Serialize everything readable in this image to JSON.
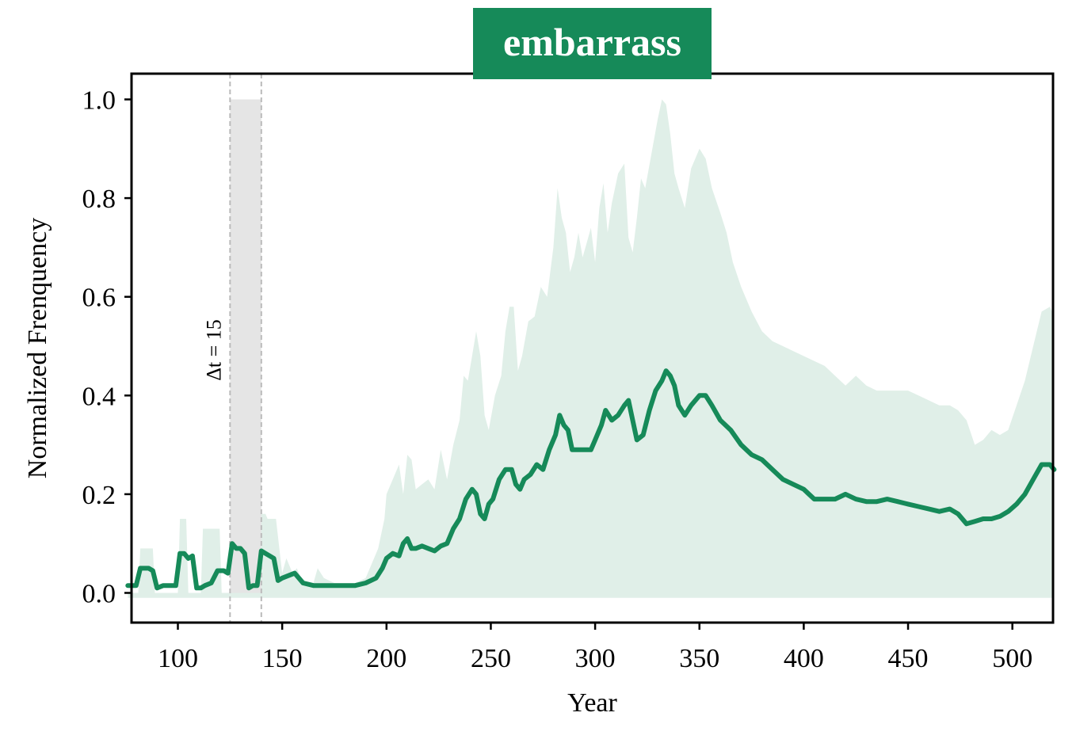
{
  "chart_data": {
    "type": "line",
    "title": "embarrass",
    "xlabel": "Year",
    "ylabel": "Normalized Frenquency",
    "xlim": [
      76,
      520
    ],
    "ylim": [
      -0.06,
      1.04
    ],
    "xticks": [
      100,
      150,
      200,
      250,
      300,
      350,
      400,
      450,
      500
    ],
    "yticks": [
      0.0,
      0.2,
      0.4,
      0.6,
      0.8,
      1.0
    ],
    "ytick_labels": [
      "0.0",
      "0.2",
      "0.4",
      "0.6",
      "0.8",
      "1.0"
    ],
    "grid": false,
    "annotation": {
      "text": "Δt = 15",
      "window_start": 125,
      "window_end": 140,
      "window_top": 1.0
    },
    "colors": {
      "line": "#168a59",
      "band": "#e0efe8",
      "title_bg": "#168a59",
      "window": "#e5e5e5",
      "window_edges": "#bbbbbb"
    },
    "series": [
      {
        "values_note": "mean",
        "x": [
          76,
          80,
          82,
          84,
          86,
          88,
          90,
          93,
          96,
          99,
          101,
          103,
          105,
          107,
          109,
          111,
          113,
          116,
          119,
          122,
          124,
          126,
          128,
          130,
          132,
          134,
          136,
          138,
          140,
          142,
          144,
          146,
          148,
          150,
          153,
          156,
          160,
          165,
          170,
          175,
          180,
          185,
          190,
          195,
          198,
          200,
          203,
          206,
          208,
          210,
          212,
          214,
          217,
          220,
          223,
          226,
          229,
          232,
          235,
          238,
          241,
          243,
          245,
          247,
          249,
          251,
          254,
          257,
          260,
          262,
          264,
          266,
          269,
          272,
          275,
          278,
          281,
          283,
          285,
          287,
          289,
          292,
          295,
          298,
          300,
          303,
          305,
          308,
          311,
          314,
          316,
          318,
          320,
          323,
          326,
          329,
          332,
          334,
          336,
          338,
          340,
          343,
          346,
          350,
          353,
          356,
          360,
          365,
          370,
          375,
          380,
          385,
          390,
          395,
          400,
          405,
          410,
          415,
          420,
          425,
          430,
          435,
          440,
          445,
          450,
          455,
          460,
          465,
          470,
          474,
          478,
          482,
          486,
          490,
          494,
          498,
          502,
          506,
          510,
          514,
          518,
          520
        ],
        "y": [
          0.015,
          0.015,
          0.05,
          0.05,
          0.05,
          0.045,
          0.01,
          0.015,
          0.015,
          0.015,
          0.08,
          0.08,
          0.07,
          0.075,
          0.01,
          0.01,
          0.015,
          0.02,
          0.045,
          0.045,
          0.04,
          0.1,
          0.09,
          0.09,
          0.08,
          0.01,
          0.015,
          0.015,
          0.085,
          0.08,
          0.075,
          0.07,
          0.025,
          0.03,
          0.035,
          0.04,
          0.02,
          0.015,
          0.015,
          0.015,
          0.015,
          0.015,
          0.02,
          0.03,
          0.05,
          0.07,
          0.08,
          0.075,
          0.1,
          0.11,
          0.09,
          0.09,
          0.095,
          0.09,
          0.085,
          0.095,
          0.1,
          0.13,
          0.15,
          0.19,
          0.21,
          0.2,
          0.16,
          0.15,
          0.18,
          0.19,
          0.23,
          0.25,
          0.25,
          0.22,
          0.21,
          0.23,
          0.24,
          0.26,
          0.25,
          0.29,
          0.32,
          0.36,
          0.34,
          0.33,
          0.29,
          0.29,
          0.29,
          0.29,
          0.31,
          0.34,
          0.37,
          0.35,
          0.36,
          0.38,
          0.39,
          0.35,
          0.31,
          0.32,
          0.37,
          0.41,
          0.43,
          0.45,
          0.44,
          0.42,
          0.38,
          0.36,
          0.38,
          0.4,
          0.4,
          0.38,
          0.35,
          0.33,
          0.3,
          0.28,
          0.27,
          0.25,
          0.23,
          0.22,
          0.21,
          0.19,
          0.19,
          0.19,
          0.2,
          0.19,
          0.185,
          0.185,
          0.19,
          0.185,
          0.18,
          0.175,
          0.17,
          0.165,
          0.17,
          0.16,
          0.14,
          0.145,
          0.15,
          0.15,
          0.155,
          0.165,
          0.18,
          0.2,
          0.23,
          0.26,
          0.26,
          0.25
        ]
      },
      {
        "values_note": "band_upper",
        "x": [
          76,
          81,
          82,
          88,
          89,
          100,
          101,
          104,
          105,
          111,
          112,
          120,
          121,
          126,
          127,
          132,
          133,
          138,
          139,
          142,
          143,
          147,
          150,
          152,
          155,
          157,
          160,
          165,
          167,
          170,
          175,
          180,
          185,
          190,
          193,
          196,
          199,
          200,
          203,
          206,
          208,
          210,
          212,
          214,
          217,
          220,
          223,
          226,
          229,
          232,
          235,
          237,
          239,
          241,
          243,
          245,
          247,
          249,
          252,
          255,
          257,
          259,
          261,
          263,
          265,
          268,
          271,
          274,
          277,
          280,
          282,
          284,
          286,
          288,
          290,
          292,
          294,
          296,
          298,
          300,
          302,
          304,
          306,
          308,
          311,
          314,
          316,
          318,
          320,
          322,
          324,
          327,
          330,
          332,
          334,
          336,
          338,
          340,
          343,
          346,
          350,
          353,
          356,
          360,
          363,
          366,
          370,
          375,
          380,
          385,
          390,
          395,
          400,
          405,
          410,
          415,
          420,
          425,
          430,
          435,
          440,
          445,
          450,
          455,
          460,
          465,
          470,
          474,
          478,
          482,
          486,
          490,
          494,
          498,
          502,
          506,
          510,
          514,
          518,
          520
        ],
        "y": [
          0.0,
          0.0,
          0.09,
          0.09,
          0.0,
          0.0,
          0.15,
          0.15,
          0.0,
          0.0,
          0.13,
          0.13,
          0.0,
          0.0,
          0.17,
          0.17,
          0.15,
          0.15,
          0.16,
          0.16,
          0.15,
          0.15,
          0.04,
          0.07,
          0.04,
          0.05,
          0.02,
          0.02,
          0.05,
          0.03,
          0.02,
          0.02,
          0.02,
          0.03,
          0.06,
          0.09,
          0.15,
          0.2,
          0.23,
          0.26,
          0.2,
          0.28,
          0.27,
          0.21,
          0.22,
          0.23,
          0.21,
          0.29,
          0.23,
          0.3,
          0.35,
          0.44,
          0.43,
          0.48,
          0.53,
          0.48,
          0.36,
          0.33,
          0.4,
          0.44,
          0.53,
          0.58,
          0.58,
          0.45,
          0.48,
          0.55,
          0.56,
          0.62,
          0.6,
          0.7,
          0.82,
          0.76,
          0.73,
          0.65,
          0.68,
          0.73,
          0.68,
          0.71,
          0.74,
          0.67,
          0.78,
          0.83,
          0.73,
          0.79,
          0.85,
          0.87,
          0.72,
          0.69,
          0.76,
          0.84,
          0.82,
          0.89,
          0.96,
          1.0,
          0.99,
          0.93,
          0.85,
          0.82,
          0.78,
          0.86,
          0.9,
          0.88,
          0.82,
          0.77,
          0.73,
          0.67,
          0.62,
          0.57,
          0.53,
          0.51,
          0.5,
          0.49,
          0.48,
          0.47,
          0.46,
          0.44,
          0.42,
          0.44,
          0.42,
          0.41,
          0.41,
          0.41,
          0.41,
          0.4,
          0.39,
          0.38,
          0.38,
          0.37,
          0.35,
          0.3,
          0.31,
          0.33,
          0.32,
          0.33,
          0.38,
          0.43,
          0.5,
          0.57,
          0.58,
          0.56
        ]
      }
    ]
  }
}
